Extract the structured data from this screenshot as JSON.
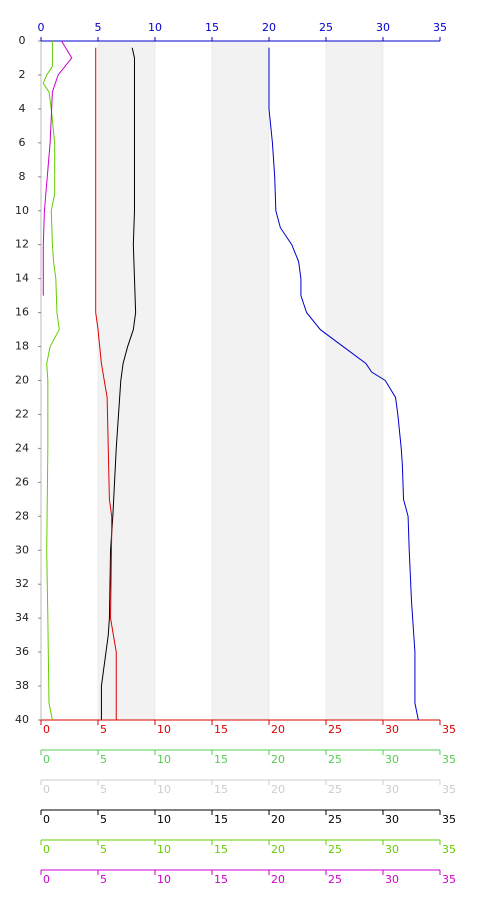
{
  "chart_data": {
    "type": "line",
    "ylim": [
      0,
      40
    ],
    "yticks": [
      0,
      2,
      4,
      6,
      8,
      10,
      12,
      14,
      16,
      18,
      20,
      22,
      24,
      26,
      28,
      30,
      32,
      34,
      36,
      38,
      40
    ],
    "bands": true,
    "x_axes": [
      {
        "position": "top",
        "color": "#0000cc",
        "xlim": [
          0,
          35
        ],
        "xticks": [
          0,
          5,
          10,
          15,
          20,
          25,
          30,
          35
        ]
      },
      {
        "position": "bottom",
        "color": "#dd0000",
        "xlim": [
          0,
          35
        ],
        "xticks": [
          0,
          5,
          10,
          15,
          20,
          25,
          30,
          35
        ]
      },
      {
        "position": "bottom",
        "color": "#55cc55",
        "xlim": [
          0,
          35
        ],
        "xticks": [
          0,
          5,
          10,
          15,
          20,
          25,
          30,
          35
        ]
      },
      {
        "position": "bottom",
        "color": "#cccccc",
        "xlim": [
          0,
          35
        ],
        "xticks": [
          0,
          5,
          10,
          15,
          20,
          25,
          30,
          35
        ]
      },
      {
        "position": "bottom",
        "color": "#000000",
        "xlim": [
          0,
          35
        ],
        "xticks": [
          0,
          5,
          10,
          15,
          20,
          25,
          30,
          35
        ]
      },
      {
        "position": "bottom",
        "color": "#66cc00",
        "xlim": [
          0,
          35
        ],
        "xticks": [
          0,
          5,
          10,
          15,
          20,
          25,
          30,
          35
        ]
      },
      {
        "position": "bottom",
        "color": "#cc00cc",
        "xlim": [
          0,
          35
        ],
        "xticks": [
          0,
          5,
          10,
          15,
          20,
          25,
          30,
          35
        ]
      }
    ],
    "series": [
      {
        "axis": 0,
        "color": "#0000cc",
        "depths": [
          0.4,
          4,
          6,
          8,
          10,
          11,
          12,
          13,
          14,
          15,
          16,
          17,
          18,
          19,
          19.5,
          20,
          21,
          22,
          24,
          25,
          27,
          28,
          30,
          33,
          35,
          36,
          39,
          40
        ],
        "values": [
          20,
          20,
          20.3,
          20.5,
          20.6,
          21,
          22,
          22.6,
          22.8,
          22.8,
          23.3,
          24.5,
          26.5,
          28.5,
          29,
          30.2,
          31.1,
          31.3,
          31.6,
          31.7,
          31.8,
          32.2,
          32.3,
          32.5,
          32.7,
          32.8,
          32.8,
          33.1
        ]
      },
      {
        "axis": 4,
        "color": "#000000",
        "depths": [
          0.4,
          1,
          10,
          12,
          14,
          16,
          17,
          18,
          19,
          20,
          22,
          24,
          28,
          30,
          34,
          35,
          37,
          38,
          40
        ],
        "values": [
          8,
          8.2,
          8.2,
          8.1,
          8.2,
          8.3,
          8.1,
          7.6,
          7.2,
          7,
          6.8,
          6.6,
          6.3,
          6.1,
          6,
          5.9,
          5.5,
          5.3,
          5.3
        ]
      },
      {
        "axis": 1,
        "color": "#dd0000",
        "depths": [
          0.4,
          16,
          17,
          19,
          21,
          24,
          27,
          28,
          29,
          34,
          36,
          40
        ],
        "values": [
          4.8,
          4.8,
          5,
          5.3,
          5.8,
          5.9,
          6,
          6.2,
          6.2,
          6.1,
          6.6,
          6.6
        ]
      },
      {
        "axis": 5,
        "color": "#66cc00",
        "depths": [
          0,
          1.5,
          2,
          2.5,
          3,
          4,
          6,
          9,
          10,
          12,
          13,
          14,
          16,
          17,
          18,
          19,
          20,
          24,
          30,
          34,
          39,
          40
        ],
        "values": [
          1,
          1,
          0.5,
          0.2,
          0.7,
          0.9,
          1.2,
          1.2,
          0.9,
          1,
          1.1,
          1.3,
          1.4,
          1.6,
          0.8,
          0.5,
          0.6,
          0.6,
          0.5,
          0.6,
          0.7,
          1
        ]
      },
      {
        "axis": 6,
        "color": "#cc00cc",
        "depths": [
          0,
          1,
          2,
          3,
          6,
          10,
          12,
          15
        ],
        "values": [
          1.8,
          2.7,
          1.5,
          1,
          0.8,
          0.3,
          0.2,
          0.2
        ]
      }
    ]
  }
}
